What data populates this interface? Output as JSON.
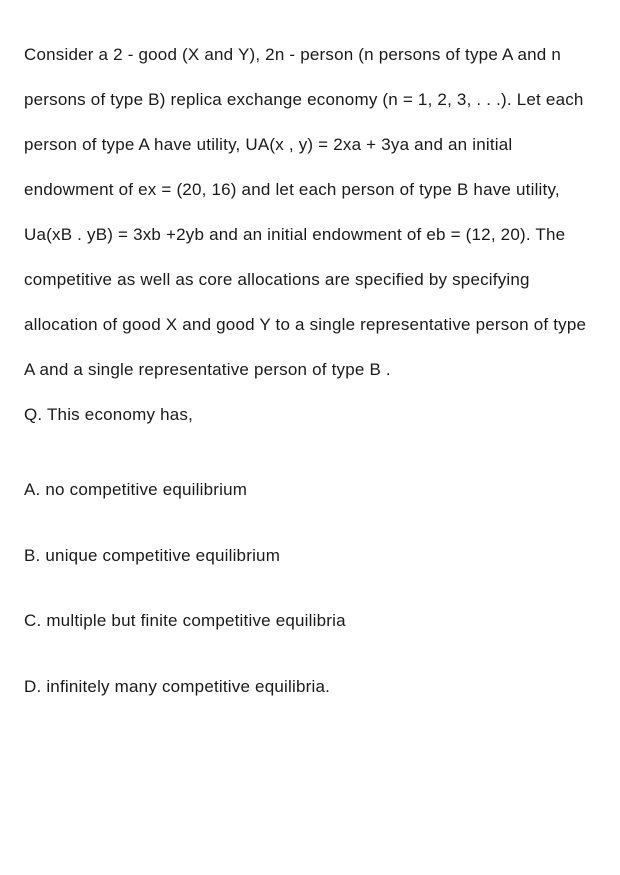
{
  "content": {
    "paragraph": "Consider a 2 - good (X and Y), 2n - person (n persons of type A and n persons of type B) replica exchange economy (n = 1, 2, 3, . . .). Let each person of type A have utility, UA(x , y) = 2xa + 3ya and an initial endowment of ex = (20, 16) and let each person of type B have utility, Ua(xB . yB) = 3xb +2yb and an initial endowment of eb = (12, 20). The competitive as well as core allocations are specified by specifying allocation of good X and good Y to a single representative person of type A and a single representative person of type B .",
    "questionPrefix": "Q. This economy has,",
    "options": {
      "a": "A. no competitive equilibrium",
      "b": "B. unique competitive equilibrium",
      "c": "C. multiple but finite competitive equilibria",
      "d": "D. infinitely many competitive equilibria."
    }
  },
  "style": {
    "background_color": "#ffffff",
    "text_color": "#1a1a1a",
    "font_family": "Arial, Helvetica, sans-serif",
    "body_fontsize": 17,
    "line_height": 2.65,
    "option_spacing": 40,
    "letter_spacing": 0.2
  }
}
